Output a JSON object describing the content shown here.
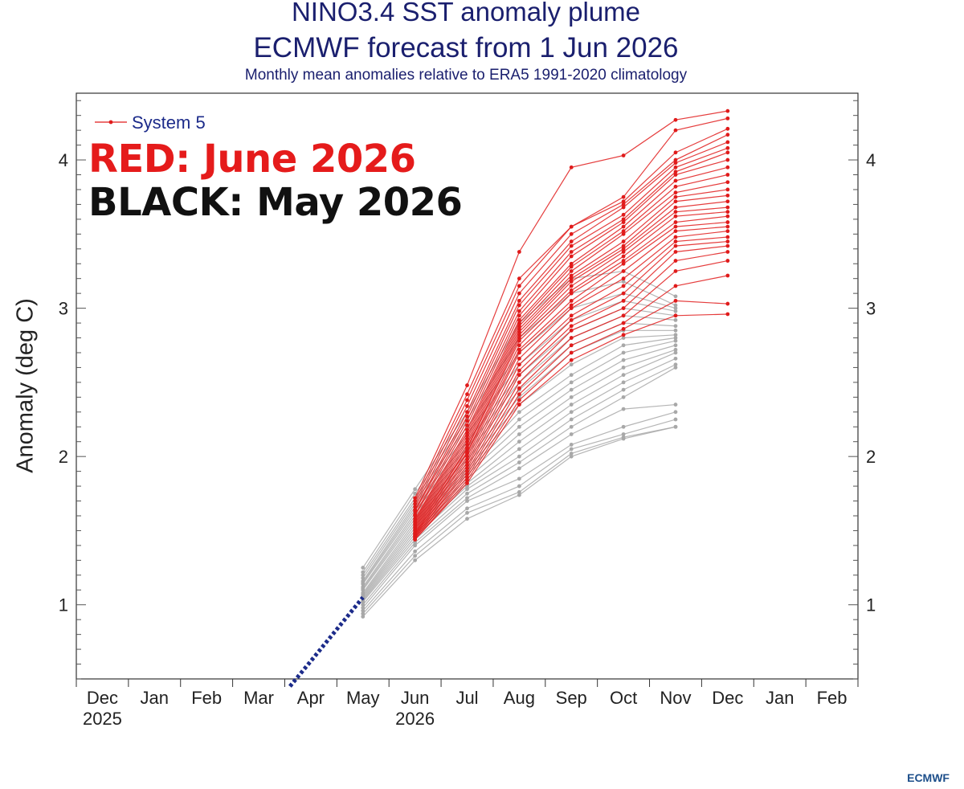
{
  "chart_data": {
    "type": "line",
    "title": "NINO3.4 SST anomaly plume",
    "subtitle": "ECMWF forecast from 1 Jun 2026",
    "note": "Monthly mean anomalies relative to ERA5 1991-2020 climatology",
    "ylabel": "Anomaly (deg C)",
    "xlabel": "",
    "ylim": [
      0.5,
      4.45
    ],
    "yticks": [
      1,
      2,
      3,
      4
    ],
    "x_tick_labels": [
      "Dec",
      "Jan",
      "Feb",
      "Mar",
      "Apr",
      "May",
      "Jun",
      "Jul",
      "Aug",
      "Sep",
      "Oct",
      "Nov",
      "Dec",
      "Jan",
      "Feb"
    ],
    "year_labels": [
      {
        "at": 0,
        "label": "2025"
      },
      {
        "at": 6,
        "label": "2026"
      }
    ],
    "legend": {
      "label": "System 5",
      "position": "top-left"
    },
    "annotations": [
      "RED: June 2026",
      "BLACK: May 2026"
    ],
    "colors": {
      "june_2026": "#e01b1b",
      "may_2026": "#a8a8a8",
      "observed": "#1c2b8a"
    },
    "observed": {
      "x": [
        3.6,
        4,
        5
      ],
      "values": [
        0.45,
        0.62,
        1.05
      ]
    },
    "series": [
      {
        "label": "June 2026",
        "color": "#e01b1b",
        "x": [
          6,
          7,
          8,
          9,
          10,
          11,
          12
        ],
        "values": [
          [
            1.72,
            2.48,
            3.38,
            3.95,
            4.03,
            4.27,
            4.33
          ],
          [
            1.7,
            2.42,
            3.2,
            3.55,
            3.75,
            4.2,
            4.28
          ],
          [
            1.68,
            2.38,
            3.15,
            3.55,
            3.72,
            4.05,
            4.21
          ],
          [
            1.66,
            2.34,
            3.1,
            3.5,
            3.7,
            4.0,
            4.17
          ],
          [
            1.64,
            2.3,
            3.05,
            3.45,
            3.68,
            3.98,
            4.12
          ],
          [
            1.63,
            2.27,
            3.02,
            3.42,
            3.63,
            3.95,
            4.08
          ],
          [
            1.61,
            2.24,
            2.98,
            3.38,
            3.6,
            3.92,
            4.05
          ],
          [
            1.6,
            2.21,
            2.95,
            3.35,
            3.58,
            3.9,
            4.0
          ],
          [
            1.58,
            2.18,
            2.92,
            3.3,
            3.55,
            3.86,
            3.95
          ],
          [
            1.57,
            2.16,
            2.9,
            3.28,
            3.52,
            3.82,
            3.9
          ],
          [
            1.56,
            2.14,
            2.88,
            3.25,
            3.5,
            3.78,
            3.85
          ],
          [
            1.55,
            2.12,
            2.86,
            3.22,
            3.45,
            3.75,
            3.8
          ],
          [
            1.54,
            2.1,
            2.84,
            3.2,
            3.42,
            3.72,
            3.76
          ],
          [
            1.53,
            2.08,
            2.82,
            3.18,
            3.4,
            3.68,
            3.72
          ],
          [
            1.52,
            2.06,
            2.8,
            3.15,
            3.38,
            3.65,
            3.68
          ],
          [
            1.51,
            2.05,
            2.78,
            3.12,
            3.35,
            3.62,
            3.65
          ],
          [
            1.5,
            2.03,
            2.75,
            3.1,
            3.32,
            3.58,
            3.62
          ],
          [
            1.49,
            2.02,
            2.72,
            3.05,
            3.3,
            3.55,
            3.58
          ],
          [
            1.48,
            2.0,
            2.7,
            3.02,
            3.25,
            3.52,
            3.55
          ],
          [
            1.48,
            1.98,
            2.66,
            3.0,
            3.2,
            3.48,
            3.52
          ],
          [
            1.47,
            1.96,
            2.62,
            2.95,
            3.15,
            3.45,
            3.48
          ],
          [
            1.47,
            1.94,
            2.58,
            2.92,
            3.1,
            3.42,
            3.45
          ],
          [
            1.46,
            1.92,
            2.55,
            2.88,
            3.05,
            3.38,
            3.42
          ],
          [
            1.46,
            1.9,
            2.5,
            2.85,
            3.0,
            3.32,
            3.38
          ],
          [
            1.45,
            1.88,
            2.46,
            2.8,
            2.95,
            3.25,
            3.32
          ],
          [
            1.45,
            1.86,
            2.42,
            2.75,
            2.9,
            3.15,
            3.22
          ],
          [
            1.44,
            1.84,
            2.38,
            2.7,
            2.86,
            3.05,
            3.03
          ],
          [
            1.44,
            1.82,
            2.35,
            2.65,
            2.82,
            2.95,
            2.96
          ]
        ]
      },
      {
        "label": "May 2026",
        "color": "#a8a8a8",
        "x": [
          5,
          6,
          7,
          8,
          9,
          10,
          11
        ],
        "values": [
          [
            1.25,
            1.78,
            2.3,
            2.9,
            3.2,
            3.25,
            3.08
          ],
          [
            1.22,
            1.75,
            2.25,
            2.8,
            3.1,
            3.18,
            3.02
          ],
          [
            1.2,
            1.72,
            2.2,
            2.7,
            3.0,
            3.1,
            3.0
          ],
          [
            1.18,
            1.7,
            2.15,
            2.62,
            2.92,
            3.05,
            2.98
          ],
          [
            1.16,
            1.68,
            2.1,
            2.55,
            2.85,
            3.0,
            2.95
          ],
          [
            1.15,
            1.66,
            2.06,
            2.5,
            2.8,
            2.95,
            2.92
          ],
          [
            1.14,
            1.64,
            2.02,
            2.45,
            2.75,
            2.9,
            2.88
          ],
          [
            1.12,
            1.62,
            1.98,
            2.4,
            2.7,
            2.85,
            2.85
          ],
          [
            1.11,
            1.6,
            1.95,
            2.35,
            2.62,
            2.8,
            2.82
          ],
          [
            1.1,
            1.58,
            1.92,
            2.3,
            2.55,
            2.75,
            2.8
          ],
          [
            1.08,
            1.56,
            1.9,
            2.25,
            2.5,
            2.7,
            2.78
          ],
          [
            1.07,
            1.54,
            1.88,
            2.2,
            2.45,
            2.65,
            2.75
          ],
          [
            1.06,
            1.52,
            1.85,
            2.15,
            2.4,
            2.6,
            2.72
          ],
          [
            1.05,
            1.5,
            1.82,
            2.1,
            2.35,
            2.55,
            2.7
          ],
          [
            1.04,
            1.48,
            1.8,
            2.05,
            2.3,
            2.5,
            2.66
          ],
          [
            1.03,
            1.46,
            1.78,
            2.0,
            2.25,
            2.45,
            2.62
          ],
          [
            1.02,
            1.44,
            1.75,
            1.96,
            2.2,
            2.4,
            2.6
          ],
          [
            1.0,
            1.42,
            1.72,
            1.92,
            2.15,
            2.32,
            2.35
          ],
          [
            0.98,
            1.4,
            1.7,
            1.85,
            2.08,
            2.2,
            2.3
          ],
          [
            0.96,
            1.36,
            1.65,
            1.8,
            2.05,
            2.15,
            2.25
          ],
          [
            0.94,
            1.33,
            1.62,
            1.76,
            2.02,
            2.13,
            2.2
          ],
          [
            0.92,
            1.3,
            1.58,
            1.74,
            2.0,
            2.12,
            2.2
          ]
        ]
      }
    ]
  },
  "logo": "ECMWF"
}
